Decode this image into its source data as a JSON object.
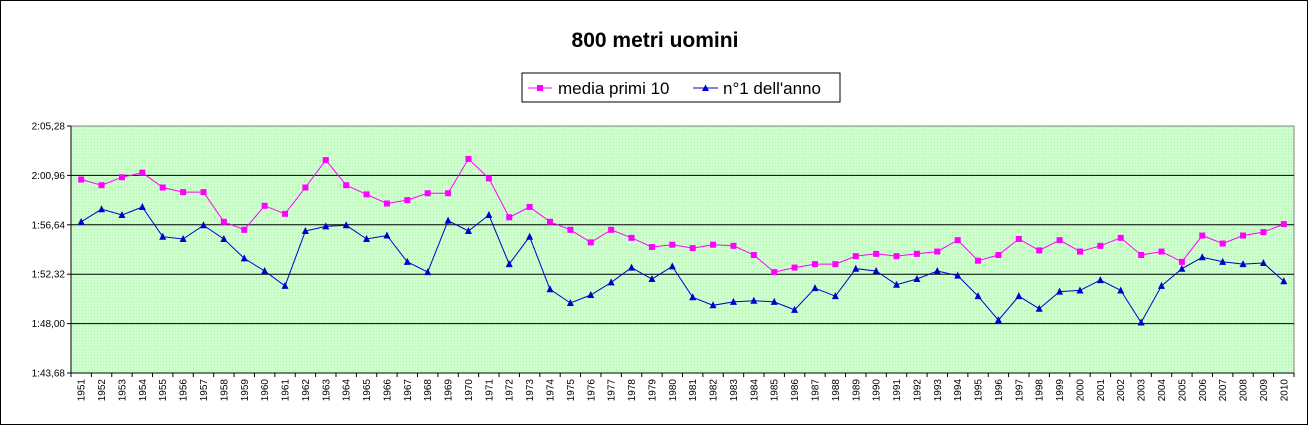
{
  "chart_data": {
    "type": "line",
    "title": "800 metri uomini",
    "xlabel": "",
    "ylabel": "",
    "y_ticks": [
      "1:43,68",
      "1:48,00",
      "1:52,32",
      "1:56,64",
      "2:00,96",
      "2:05,28"
    ],
    "ylim": [
      103.68,
      125.28
    ],
    "grid": true,
    "legend_position": "top-center",
    "plot_background": "#ccffcc",
    "categories": [
      "1951",
      "1952",
      "1953",
      "1954",
      "1955",
      "1956",
      "1957",
      "1958",
      "1959",
      "1960",
      "1961",
      "1962",
      "1963",
      "1964",
      "1965",
      "1966",
      "1967",
      "1968",
      "1969",
      "1970",
      "1971",
      "1972",
      "1973",
      "1974",
      "1975",
      "1976",
      "1977",
      "1978",
      "1979",
      "1980",
      "1981",
      "1982",
      "1983",
      "1984",
      "1985",
      "1986",
      "1987",
      "1988",
      "1989",
      "1990",
      "1991",
      "1992",
      "1993",
      "1994",
      "1995",
      "1996",
      "1997",
      "1998",
      "1999",
      "2000",
      "2001",
      "2002",
      "2003",
      "2004",
      "2005",
      "2006",
      "2007",
      "2008",
      "2009",
      "2010"
    ],
    "series": [
      {
        "name": "media primi 10",
        "color": "#ff00ff",
        "marker": "square",
        "values": [
          120.6,
          120.1,
          120.8,
          121.2,
          119.9,
          119.5,
          119.5,
          116.9,
          116.2,
          118.3,
          117.6,
          119.9,
          122.3,
          120.1,
          119.3,
          118.5,
          118.8,
          119.4,
          119.4,
          122.4,
          120.7,
          117.3,
          118.2,
          116.9,
          116.2,
          115.1,
          116.2,
          115.5,
          114.7,
          114.9,
          114.6,
          114.9,
          114.8,
          114.0,
          112.5,
          112.9,
          113.2,
          113.2,
          113.9,
          114.1,
          113.9,
          114.1,
          114.3,
          115.3,
          113.5,
          114.0,
          115.4,
          114.4,
          115.3,
          114.3,
          114.8,
          115.5,
          114.0,
          114.3,
          113.4,
          115.7,
          115.0,
          115.7,
          116.0,
          116.7
        ]
      },
      {
        "name": "n°1 dell'anno",
        "color": "#0000cc",
        "marker": "triangle",
        "values": [
          116.9,
          118.0,
          117.5,
          118.2,
          115.6,
          115.4,
          116.6,
          115.4,
          113.7,
          112.6,
          111.3,
          116.1,
          116.5,
          116.6,
          115.4,
          115.7,
          113.4,
          112.5,
          117.0,
          116.1,
          117.5,
          113.2,
          115.6,
          111.0,
          109.8,
          110.5,
          111.6,
          112.9,
          111.9,
          113.0,
          110.3,
          109.6,
          109.9,
          110.0,
          109.9,
          109.2,
          111.1,
          110.4,
          112.8,
          112.6,
          111.4,
          111.9,
          112.6,
          112.2,
          110.4,
          108.3,
          110.4,
          109.3,
          110.8,
          110.9,
          111.8,
          110.9,
          108.1,
          111.3,
          112.8,
          113.8,
          113.4,
          113.2,
          113.3,
          111.7
        ]
      }
    ]
  }
}
